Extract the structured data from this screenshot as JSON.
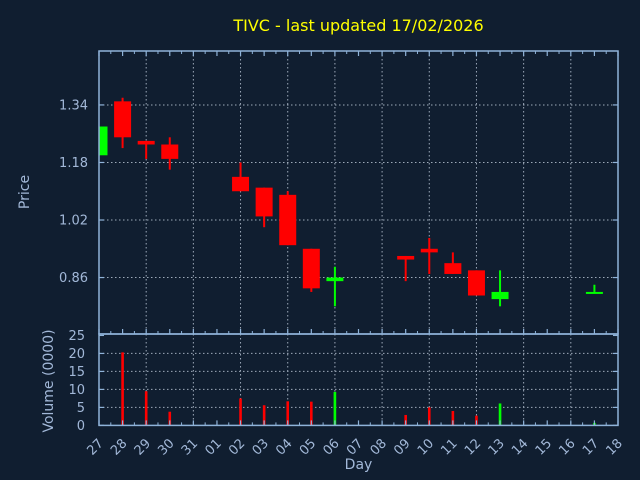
{
  "chart_data": {
    "type": "candlestick",
    "title": "TIVC - last updated 17/02/2026",
    "xlabel": "Day",
    "x_tick_labels": [
      "27",
      "28",
      "29",
      "30",
      "31",
      "01",
      "02",
      "03",
      "04",
      "05",
      "06",
      "07",
      "08",
      "09",
      "10",
      "11",
      "12",
      "13",
      "14",
      "15",
      "16",
      "17",
      "18"
    ],
    "grid": true,
    "x_grid_every": 2,
    "legend": "none",
    "price_panel": {
      "ylabel": "Price",
      "ytick_labels": [
        "1.34",
        "1.18",
        "1.02",
        "0.86"
      ],
      "ylim": [
        0.703,
        1.49
      ]
    },
    "volume_panel": {
      "ylabel": "Volume (0000)",
      "ytick_labels": [
        "25",
        "20",
        "15",
        "10",
        "5",
        "0"
      ],
      "grid_yticks": [
        20,
        15,
        10,
        5
      ],
      "ylim": [
        0,
        25.4
      ]
    },
    "colors": {
      "up": "#00ff00",
      "down": "#ff0000",
      "background": "#101e30",
      "axes": "#8fb3d9",
      "grid": "#b6c2d2",
      "tick_text": "#a2b8d8",
      "title_text": "#ffff00"
    },
    "candles": [
      {
        "day": "27",
        "open": 1.2,
        "high": 1.28,
        "low": 1.2,
        "close": 1.28,
        "volume": null,
        "direction": "up"
      },
      {
        "day": "28",
        "open": 1.35,
        "high": 1.36,
        "low": 1.22,
        "close": 1.25,
        "volume": 20.3,
        "direction": "down"
      },
      {
        "day": "29",
        "open": 1.24,
        "high": 1.24,
        "low": 1.19,
        "close": 1.23,
        "volume": 9.5,
        "direction": "down"
      },
      {
        "day": "30",
        "open": 1.23,
        "high": 1.25,
        "low": 1.16,
        "close": 1.19,
        "volume": 3.8,
        "direction": "down"
      },
      {
        "day": "02",
        "open": 1.14,
        "high": 1.18,
        "low": 1.1,
        "close": 1.1,
        "volume": 7.5,
        "direction": "down"
      },
      {
        "day": "03",
        "open": 1.11,
        "high": 1.11,
        "low": 1.0,
        "close": 1.03,
        "volume": 5.6,
        "direction": "down"
      },
      {
        "day": "04",
        "open": 1.09,
        "high": 1.1,
        "low": 0.95,
        "close": 0.95,
        "volume": 6.7,
        "direction": "down"
      },
      {
        "day": "05",
        "open": 0.94,
        "high": 0.94,
        "low": 0.82,
        "close": 0.83,
        "volume": 6.6,
        "direction": "down"
      },
      {
        "day": "06",
        "open": 0.85,
        "high": 0.89,
        "low": 0.78,
        "close": 0.86,
        "volume": 9.3,
        "direction": "up"
      },
      {
        "day": "09",
        "open": 0.92,
        "high": 0.92,
        "low": 0.85,
        "close": 0.91,
        "volume": 2.9,
        "direction": "down"
      },
      {
        "day": "10",
        "open": 0.94,
        "high": 0.97,
        "low": 0.87,
        "close": 0.93,
        "volume": 5.0,
        "direction": "down"
      },
      {
        "day": "11",
        "open": 0.9,
        "high": 0.93,
        "low": 0.87,
        "close": 0.87,
        "volume": 4.0,
        "direction": "down"
      },
      {
        "day": "12",
        "open": 0.88,
        "high": 0.88,
        "low": 0.81,
        "close": 0.81,
        "volume": 2.7,
        "direction": "down"
      },
      {
        "day": "13",
        "open": 0.8,
        "high": 0.88,
        "low": 0.78,
        "close": 0.82,
        "volume": 6.1,
        "direction": "up"
      },
      {
        "day": "17",
        "open": 0.82,
        "high": 0.84,
        "low": 0.82,
        "close": 0.82,
        "volume": 0.7,
        "direction": "up"
      }
    ]
  }
}
